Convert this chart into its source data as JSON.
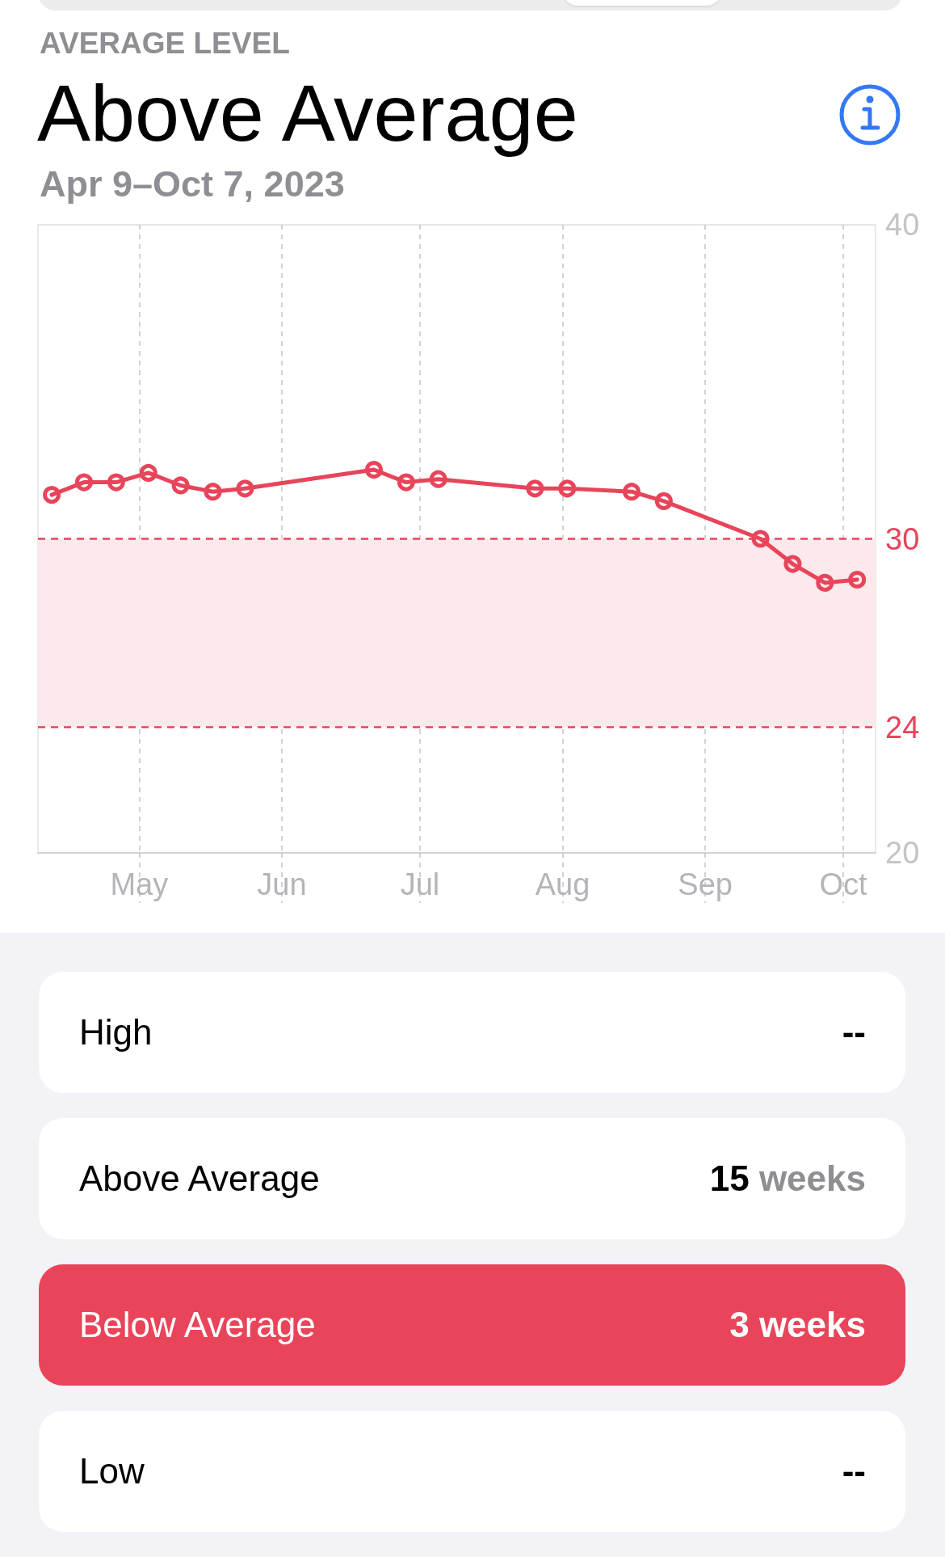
{
  "chart_data": [
    {
      "type": "line",
      "title": "Above Average",
      "subtitle": "Apr 9–Oct 7, 2023",
      "annotations": [
        "AVERAGE LEVEL"
      ],
      "x": [
        "2023-04-12",
        "2023-04-19",
        "2023-04-26",
        "2023-05-03",
        "2023-05-10",
        "2023-05-17",
        "2023-05-24",
        "2023-06-21",
        "2023-06-28",
        "2023-07-05",
        "2023-07-26",
        "2023-08-02",
        "2023-08-16",
        "2023-08-23",
        "2023-09-13",
        "2023-09-20",
        "2023-09-27",
        "2023-10-04"
      ],
      "values": [
        31.4,
        31.8,
        31.8,
        32.1,
        31.7,
        31.5,
        31.6,
        32.2,
        31.8,
        31.9,
        31.6,
        31.6,
        31.5,
        31.2,
        30.0,
        29.2,
        28.6,
        28.7
      ],
      "color": "#e8445a",
      "marker": "circle",
      "line_style": "solid",
      "xlim": [
        "2023-04-09",
        "2023-10-08"
      ],
      "xticks": [
        {
          "value": "2023-05-01",
          "label": "May"
        },
        {
          "value": "2023-06-01",
          "label": "Jun"
        },
        {
          "value": "2023-07-01",
          "label": "Jul"
        },
        {
          "value": "2023-08-01",
          "label": "Aug"
        },
        {
          "value": "2023-09-01",
          "label": "Sep"
        },
        {
          "value": "2023-10-01",
          "label": "Oct"
        }
      ],
      "ylim": [
        20,
        40
      ],
      "yticks": [
        20,
        40
      ],
      "grid": true,
      "ref_lines": [
        {
          "axis": "y",
          "value": 30,
          "label": "30",
          "color": "#e8445a",
          "line_style": "dashed"
        },
        {
          "axis": "y",
          "value": 24,
          "label": "24",
          "color": "#e8445a",
          "line_style": "dashed"
        }
      ],
      "bands": [
        {
          "axis": "y",
          "from": 24,
          "to": 30,
          "color": "#fbe9ec"
        }
      ]
    },
    {
      "type": "other",
      "categories": [
        "High",
        "Above Average",
        "Below Average",
        "Low"
      ],
      "value_labels": [
        "--",
        "15 weeks",
        "3 weeks",
        "--"
      ],
      "colors": [
        "#ffffff",
        "#ffffff",
        "#e8445a",
        "#ffffff"
      ]
    }
  ]
}
